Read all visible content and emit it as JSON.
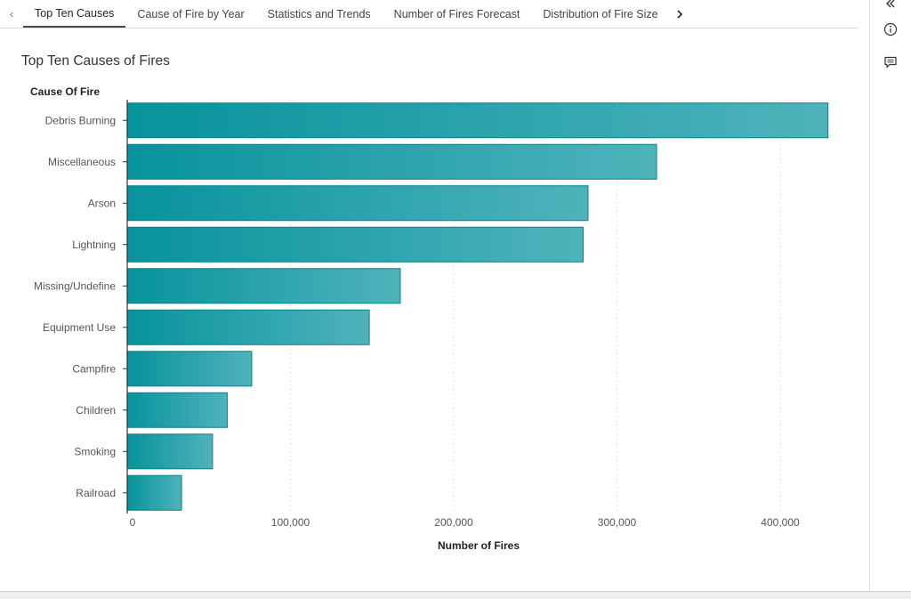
{
  "tabs": {
    "items": [
      {
        "label": "Top Ten Causes",
        "active": true
      },
      {
        "label": "Cause of Fire by Year",
        "active": false
      },
      {
        "label": "Statistics and Trends",
        "active": false
      },
      {
        "label": "Number of Fires Forecast",
        "active": false
      },
      {
        "label": "Distribution of Fire Size",
        "active": false
      }
    ],
    "prev_icon": "chevron-left-icon",
    "next_icon": "chevron-right-icon"
  },
  "side_panel": {
    "icons": [
      "double-chevron-left-icon",
      "info-icon",
      "comment-icon"
    ]
  },
  "colors": {
    "bar_start": "#07939d",
    "bar_end": "#4fb3bb",
    "bar_stroke": "#0a7f88",
    "grid": "#e2e2e2",
    "axis": "#333333"
  },
  "chart_data": {
    "type": "bar",
    "orientation": "horizontal",
    "title": "Top Ten Causes of Fires",
    "ylabel": "Cause Of Fire",
    "xlabel": "Number of Fires",
    "categories": [
      "Debris Burning",
      "Miscellaneous",
      "Arson",
      "Lightning",
      "Missing/Undefine",
      "Equipment Use",
      "Campfire",
      "Children",
      "Smoking",
      "Railroad"
    ],
    "values": [
      429000,
      324000,
      282000,
      279000,
      167000,
      148000,
      76000,
      61000,
      52000,
      33000
    ],
    "xlim": [
      0,
      450000
    ],
    "xticks": [
      0,
      100000,
      200000,
      300000,
      400000
    ],
    "xtick_labels": [
      "0",
      "100,000",
      "200,000",
      "300,000",
      "400,000"
    ],
    "grid": "vertical dotted"
  }
}
